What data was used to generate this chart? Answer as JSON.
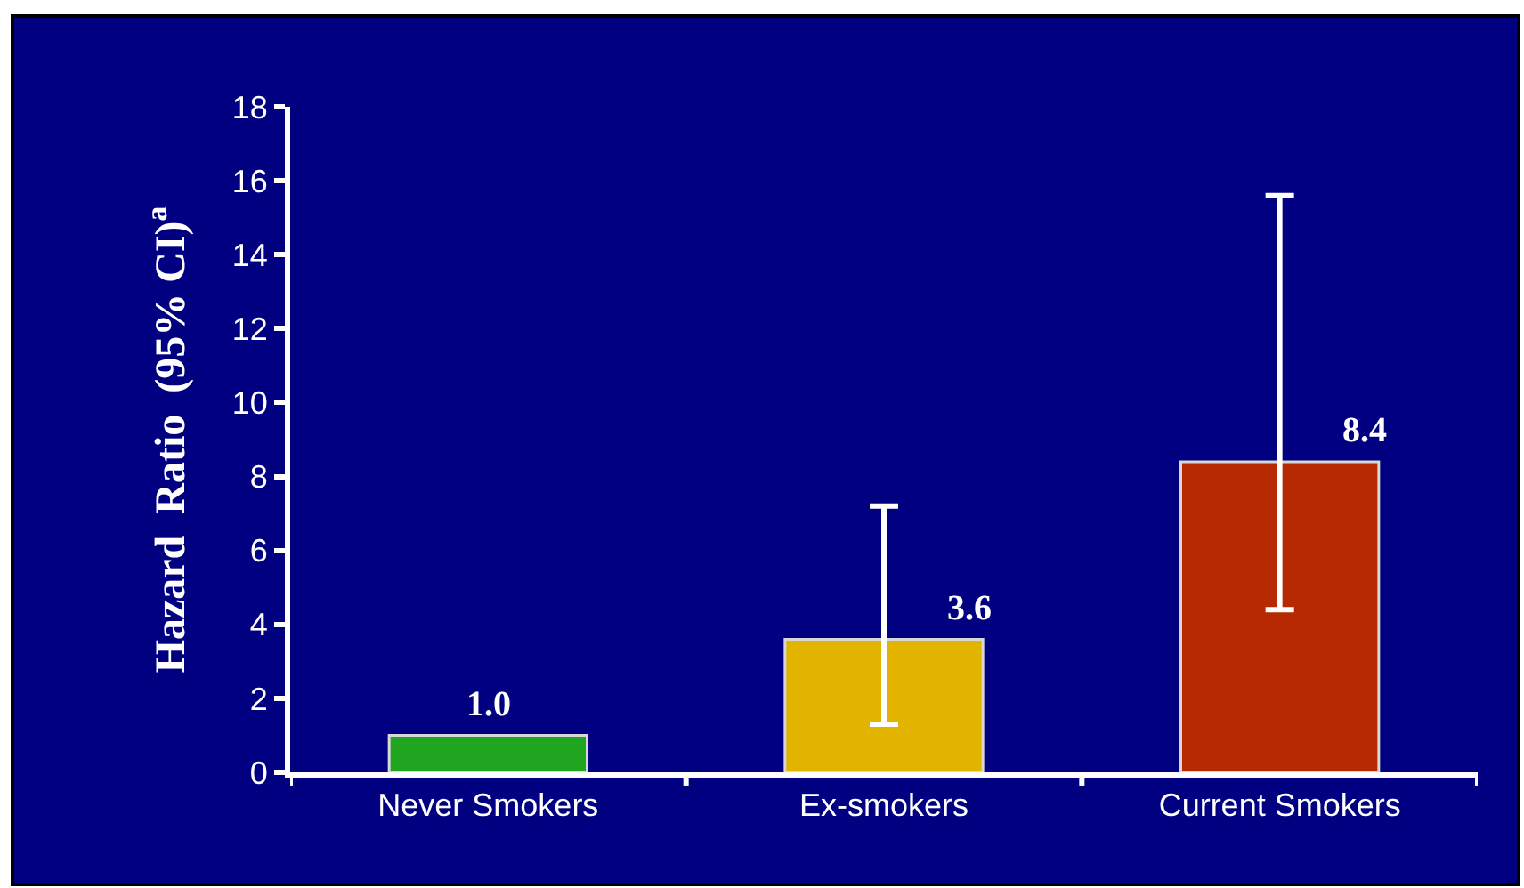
{
  "chart_data": {
    "type": "bar",
    "ylabel": "Hazard  Ratio  (95% CI)$^{a}$",
    "categories": [
      "Never Smokers",
      "Ex-smokers",
      "Current Smokers"
    ],
    "values": [
      1.0,
      3.6,
      8.4
    ],
    "colors": [
      "#1fa51f",
      "#e2b400",
      "#b52a00"
    ],
    "errors": [
      null,
      [
        1.3,
        7.2
      ],
      [
        4.4,
        15.6
      ]
    ],
    "value_labels": [
      "1.0",
      "3.6",
      "8.4"
    ],
    "ylim": [
      0,
      18
    ],
    "yticks": [
      0,
      2,
      4,
      6,
      8,
      10,
      12,
      14,
      16,
      18
    ],
    "grid": false
  }
}
